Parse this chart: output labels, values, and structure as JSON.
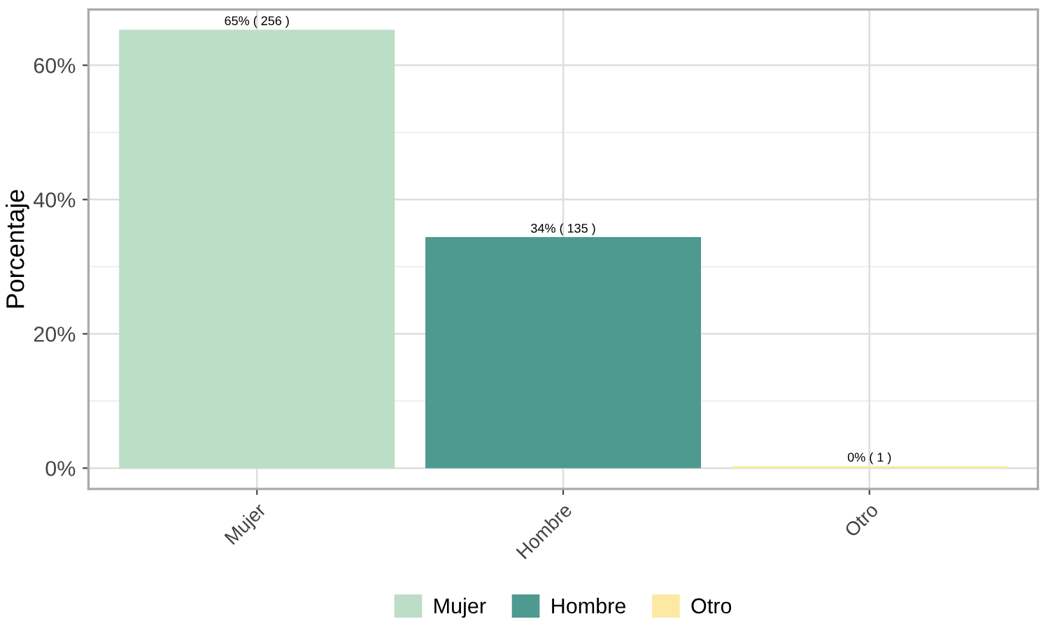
{
  "chart_data": {
    "type": "bar",
    "ylabel": "Porcentaje",
    "categories": [
      "Mujer",
      "Hombre",
      "Otro"
    ],
    "series": [
      {
        "name": "Mujer",
        "color": "#bcdec6",
        "values": [
          65.3,
          null,
          null
        ],
        "value_labels": [
          "65% ( 256 )",
          null,
          null
        ]
      },
      {
        "name": "Hombre",
        "color": "#4e9a90",
        "values": [
          null,
          34.4,
          null
        ],
        "value_labels": [
          null,
          "34% ( 135 )",
          null
        ]
      },
      {
        "name": "Otro",
        "color": "#fde9a4",
        "values": [
          null,
          null,
          0.3
        ],
        "value_labels": [
          null,
          null,
          "0% ( 1 )"
        ]
      }
    ],
    "ylim": [
      -3.1,
      68.3
    ],
    "yticks": [
      {
        "value": 0,
        "label": "0%"
      },
      {
        "value": 20,
        "label": "20%"
      },
      {
        "value": 40,
        "label": "40%"
      },
      {
        "value": 60,
        "label": "60%"
      }
    ],
    "grid": true,
    "legend": "bottom"
  }
}
